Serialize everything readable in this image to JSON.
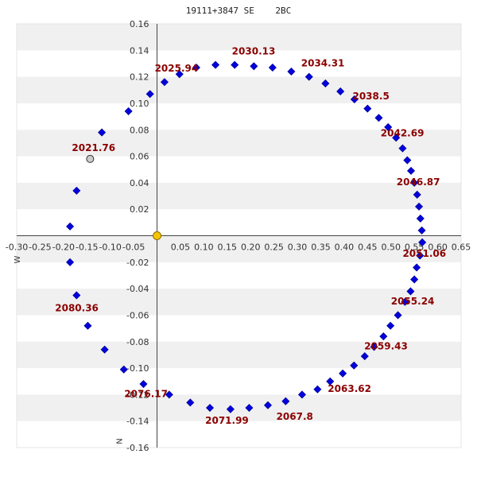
{
  "title": "19111+3847 SE    2BC",
  "chart_data": {
    "type": "scatter",
    "title": "19111+3847 SE    2BC",
    "xlim": [
      -0.3,
      0.65
    ],
    "ylim": [
      -0.16,
      0.16
    ],
    "x_ticks": [
      -0.3,
      -0.25,
      -0.2,
      -0.15,
      -0.1,
      -0.05,
      0.05,
      0.1,
      0.15,
      0.2,
      0.25,
      0.3,
      0.35,
      0.4,
      0.45,
      0.5,
      0.55,
      0.6,
      0.65
    ],
    "x_tick_labels": [
      "-0.30",
      "-0.25",
      "-0.20",
      "-0.15",
      "-0.10",
      "-0.05",
      "0.05",
      "0.10",
      "0.15",
      "0.20",
      "0.25",
      "0.30",
      "0.35",
      "0.40",
      "0.45",
      "0.50",
      "0.55",
      "0.60",
      "0.65"
    ],
    "y_ticks": [
      0.16,
      0.14,
      0.12,
      0.1,
      0.08,
      0.06,
      0.04,
      0.02,
      -0.02,
      -0.04,
      -0.06,
      -0.08,
      -0.1,
      -0.12,
      -0.14,
      -0.16
    ],
    "y_tick_labels": [
      "0.16",
      "0.14",
      "0.12",
      "0.10",
      "0.08",
      "0.06",
      "0.04",
      "0.02",
      "-0.02",
      "-0.04",
      "-0.06",
      "-0.08",
      "-0.10",
      "-0.12",
      "-0.14",
      "-0.16"
    ],
    "grid": "horizontal bands",
    "side_labels": {
      "w": "W",
      "n": "N"
    },
    "colors": {
      "orbit": "#0000dd",
      "origin": "#f5c400",
      "current": "#cccccc",
      "label": "#8b0000",
      "band": "#f0f0f0"
    },
    "origin": {
      "x": 0.0,
      "y": 0.0
    },
    "current_point": {
      "x": -0.143,
      "y": 0.058
    },
    "orbit_points": [
      {
        "x": -0.118,
        "y": 0.078
      },
      {
        "x": -0.061,
        "y": 0.094
      },
      {
        "x": -0.015,
        "y": 0.107
      },
      {
        "x": 0.016,
        "y": 0.116
      },
      {
        "x": 0.048,
        "y": 0.122
      },
      {
        "x": 0.084,
        "y": 0.127
      },
      {
        "x": 0.125,
        "y": 0.129
      },
      {
        "x": 0.166,
        "y": 0.129
      },
      {
        "x": 0.207,
        "y": 0.128
      },
      {
        "x": 0.247,
        "y": 0.127
      },
      {
        "x": 0.287,
        "y": 0.124
      },
      {
        "x": 0.325,
        "y": 0.12
      },
      {
        "x": 0.36,
        "y": 0.115
      },
      {
        "x": 0.392,
        "y": 0.109
      },
      {
        "x": 0.422,
        "y": 0.103
      },
      {
        "x": 0.45,
        "y": 0.096
      },
      {
        "x": 0.474,
        "y": 0.089
      },
      {
        "x": 0.494,
        "y": 0.082
      },
      {
        "x": 0.511,
        "y": 0.074
      },
      {
        "x": 0.525,
        "y": 0.066
      },
      {
        "x": 0.535,
        "y": 0.057
      },
      {
        "x": 0.543,
        "y": 0.049
      },
      {
        "x": 0.55,
        "y": 0.04
      },
      {
        "x": 0.556,
        "y": 0.031
      },
      {
        "x": 0.56,
        "y": 0.022
      },
      {
        "x": 0.563,
        "y": 0.013
      },
      {
        "x": 0.566,
        "y": 0.004
      },
      {
        "x": 0.567,
        "y": -0.005
      },
      {
        "x": 0.562,
        "y": -0.015
      },
      {
        "x": 0.555,
        "y": -0.024
      },
      {
        "x": 0.55,
        "y": -0.033
      },
      {
        "x": 0.542,
        "y": -0.042
      },
      {
        "x": 0.53,
        "y": -0.05
      },
      {
        "x": 0.515,
        "y": -0.06
      },
      {
        "x": 0.499,
        "y": -0.068
      },
      {
        "x": 0.484,
        "y": -0.076
      },
      {
        "x": 0.464,
        "y": -0.084
      },
      {
        "x": 0.444,
        "y": -0.091
      },
      {
        "x": 0.421,
        "y": -0.098
      },
      {
        "x": 0.397,
        "y": -0.104
      },
      {
        "x": 0.37,
        "y": -0.11
      },
      {
        "x": 0.343,
        "y": -0.116
      },
      {
        "x": 0.31,
        "y": -0.12
      },
      {
        "x": 0.275,
        "y": -0.125
      },
      {
        "x": 0.237,
        "y": -0.128
      },
      {
        "x": 0.197,
        "y": -0.13
      },
      {
        "x": 0.157,
        "y": -0.131
      },
      {
        "x": 0.113,
        "y": -0.13
      },
      {
        "x": 0.071,
        "y": -0.126
      },
      {
        "x": 0.026,
        "y": -0.12
      },
      {
        "x": -0.029,
        "y": -0.112
      },
      {
        "x": -0.071,
        "y": -0.101
      },
      {
        "x": -0.112,
        "y": -0.086
      },
      {
        "x": -0.148,
        "y": -0.068
      },
      {
        "x": -0.172,
        "y": -0.045
      },
      {
        "x": -0.186,
        "y": -0.02
      },
      {
        "x": -0.186,
        "y": 0.007
      },
      {
        "x": -0.172,
        "y": 0.034
      }
    ],
    "annotations": [
      {
        "text": "2021.76",
        "x": -0.182,
        "y": 0.064
      },
      {
        "text": "2025.94",
        "x": -0.005,
        "y": 0.124
      },
      {
        "text": "2030.13",
        "x": 0.16,
        "y": 0.137
      },
      {
        "text": "2034.31",
        "x": 0.308,
        "y": 0.128
      },
      {
        "text": "2038.5",
        "x": 0.418,
        "y": 0.103
      },
      {
        "text": "2042.69",
        "x": 0.478,
        "y": 0.075
      },
      {
        "text": "2046.87",
        "x": 0.512,
        "y": 0.038
      },
      {
        "text": "2051.06",
        "x": 0.525,
        "y": -0.016
      },
      {
        "text": "2055.24",
        "x": 0.5,
        "y": -0.052
      },
      {
        "text": "2059.43",
        "x": 0.443,
        "y": -0.086
      },
      {
        "text": "2063.62",
        "x": 0.365,
        "y": -0.118
      },
      {
        "text": "2067.8",
        "x": 0.255,
        "y": -0.139
      },
      {
        "text": "2071.99",
        "x": 0.103,
        "y": -0.142
      },
      {
        "text": "2076.17",
        "x": -0.07,
        "y": -0.122
      },
      {
        "text": "2080.36",
        "x": -0.218,
        "y": -0.057
      }
    ]
  }
}
